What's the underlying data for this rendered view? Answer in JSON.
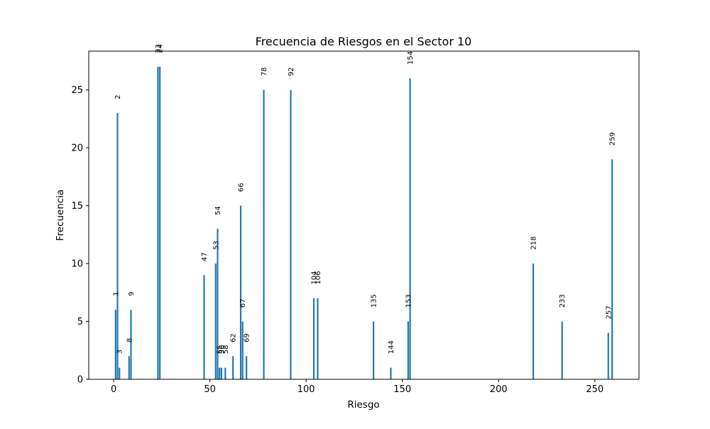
{
  "chart_data": {
    "type": "bar",
    "title": "Frecuencia de Riesgos en el Sector 10",
    "xlabel": "Riesgo",
    "ylabel": "Frecuencia",
    "xlim": [
      -12.95,
      272.95
    ],
    "ylim": [
      0,
      28.35
    ],
    "xticks": [
      0,
      50,
      100,
      150,
      200,
      250
    ],
    "yticks": [
      0,
      5,
      10,
      15,
      20,
      25
    ],
    "grid": false,
    "bar_color": "#1f77b4",
    "x": [
      1,
      2,
      3,
      8,
      9,
      23,
      24,
      47,
      53,
      54,
      55,
      56,
      58,
      62,
      66,
      67,
      69,
      78,
      92,
      104,
      106,
      135,
      144,
      153,
      154,
      218,
      233,
      257,
      259
    ],
    "values": [
      6,
      23,
      1,
      2,
      6,
      27,
      27,
      9,
      10,
      13,
      1,
      1,
      1,
      2,
      15,
      5,
      2,
      25,
      25,
      7,
      7,
      5,
      1,
      5,
      26,
      10,
      5,
      4,
      19
    ]
  }
}
